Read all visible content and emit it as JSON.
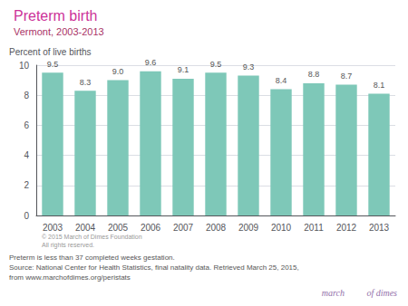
{
  "chart_data": {
    "type": "bar",
    "title": "Preterm birth",
    "subtitle": "Vermont, 2003-2013",
    "categories": [
      "2003",
      "2004",
      "2005",
      "2006",
      "2007",
      "2008",
      "2009",
      "2010",
      "2011",
      "2012",
      "2013"
    ],
    "values": [
      9.5,
      8.3,
      9.0,
      9.6,
      9.1,
      9.5,
      9.3,
      8.4,
      8.8,
      8.7,
      8.1
    ],
    "value_labels": [
      "9.5",
      "8.3",
      "9.0",
      "9.6",
      "9.1",
      "9.5",
      "9.3",
      "8.4",
      "8.8",
      "8.7",
      "8.1"
    ],
    "data_labels": true,
    "color": "#7EC8B8",
    "ylabel": "Percent of live births",
    "ylim": [
      0,
      10
    ],
    "yticks": [
      0,
      2,
      4,
      6,
      8,
      10
    ],
    "grid": true,
    "annotations": [
      "© 2015 March of Dimes Foundation",
      "All rights reserved.",
      "Preterm is less than 37 completed weeks gestation.",
      "Source: National Center for Health Statistics, final natality data. Retrieved March 25, 2015,",
      "from www.marchofdimes.org/peristats",
      "march",
      "of dimes"
    ]
  }
}
